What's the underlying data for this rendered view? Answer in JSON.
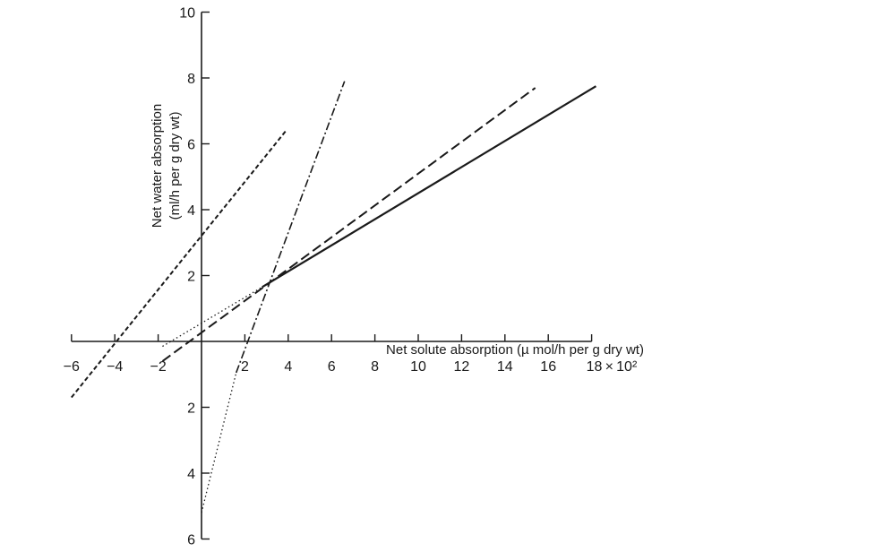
{
  "chart_data": {
    "type": "line",
    "xlabel": "Net solute absorption (µ mol/h per g dry wt)",
    "ylabel_line1": "Net water absorption",
    "ylabel_line2": "(ml/h per g dry wt)",
    "x_ticks": [
      {
        "value": -6,
        "label": "−6"
      },
      {
        "value": -4,
        "label": "−4"
      },
      {
        "value": -2,
        "label": "−2"
      },
      {
        "value": 2,
        "label": "2"
      },
      {
        "value": 4,
        "label": "4"
      },
      {
        "value": 6,
        "label": "6"
      },
      {
        "value": 8,
        "label": "8"
      },
      {
        "value": 10,
        "label": "10"
      },
      {
        "value": 12,
        "label": "12"
      },
      {
        "value": 14,
        "label": "14"
      },
      {
        "value": 16,
        "label": "16"
      },
      {
        "value": 18,
        "label": "18 × 10²"
      }
    ],
    "y_ticks": [
      {
        "value": 10,
        "label": "10"
      },
      {
        "value": 8,
        "label": "8"
      },
      {
        "value": 6,
        "label": "6"
      },
      {
        "value": 4,
        "label": "4"
      },
      {
        "value": 2,
        "label": "2"
      },
      {
        "value": -2,
        "label": "2"
      },
      {
        "value": -4,
        "label": "4"
      },
      {
        "value": -6,
        "label": "6"
      }
    ],
    "xlim": [
      -6,
      18
    ],
    "ylim": [
      -6,
      10
    ],
    "x_multiplier": "× 10²",
    "grid": false,
    "series": [
      {
        "style": "solid",
        "color": "#1a1a1a",
        "segments": [
          {
            "x": [
              2.8,
              18.2
            ],
            "y": [
              1.65,
              7.75
            ],
            "dash": "solid"
          },
          {
            "x": [
              -1.8,
              2.8
            ],
            "y": [
              -0.15,
              1.65
            ],
            "dash": "dotted"
          }
        ]
      },
      {
        "style": "dashed",
        "color": "#1a1a1a",
        "segments": [
          {
            "x": [
              -1.8,
              15.4
            ],
            "y": [
              -0.6,
              7.7
            ],
            "dash": "dashed"
          }
        ]
      },
      {
        "style": "dash-dot",
        "color": "#1a1a1a",
        "segments": [
          {
            "x": [
              1.6,
              6.6
            ],
            "y": [
              -0.95,
              7.9
            ],
            "dash": "dashdot"
          },
          {
            "x": [
              0,
              1.6
            ],
            "y": [
              -5.2,
              -0.95
            ],
            "dash": "dotted"
          }
        ]
      },
      {
        "style": "short-dashed",
        "color": "#1a1a1a",
        "segments": [
          {
            "x": [
              -6.0,
              3.9
            ],
            "y": [
              -1.7,
              6.4
            ],
            "dash": "shortdash"
          }
        ]
      }
    ]
  }
}
